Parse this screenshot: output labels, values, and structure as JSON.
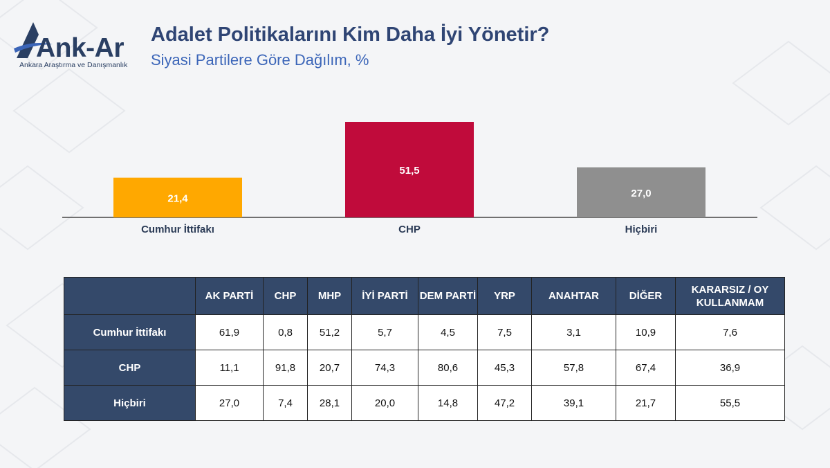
{
  "logo": {
    "text": "Ank-Ar",
    "subtitle": "Ankara Araştırma ve Danışmanlık"
  },
  "header": {
    "title": "Adalet Politikalarını Kim Daha İyi Yönetir?",
    "subtitle": "Siyasi Partilere Göre Dağılım, %"
  },
  "chart_data": {
    "type": "bar",
    "categories": [
      "Cumhur İttifakı",
      "CHP",
      "Hiçbiri"
    ],
    "values": [
      21.4,
      51.5,
      27.0
    ],
    "value_labels": [
      "21,4",
      "51,5",
      "27,0"
    ],
    "colors": [
      "#ffa800",
      "#c00b3b",
      "#8f8f8f"
    ],
    "ylim": [
      0,
      51.5
    ],
    "grid": false,
    "legend": "none"
  },
  "table": {
    "corner": "",
    "columns": [
      "AK PARTİ",
      "CHP",
      "MHP",
      "İYİ PARTİ",
      "DEM PARTİ",
      "YRP",
      "ANAHTAR",
      "DİĞER",
      "KARARSIZ / OY KULLANMAM"
    ],
    "rows": [
      {
        "label": "Cumhur İttifakı",
        "values": [
          "61,9",
          "0,8",
          "51,2",
          "5,7",
          "4,5",
          "7,5",
          "3,1",
          "10,9",
          "7,6"
        ]
      },
      {
        "label": "CHP",
        "values": [
          "11,1",
          "91,8",
          "20,7",
          "74,3",
          "80,6",
          "45,3",
          "57,8",
          "67,4",
          "36,9"
        ]
      },
      {
        "label": "Hiçbiri",
        "values": [
          "27,0",
          "7,4",
          "28,1",
          "20,0",
          "14,8",
          "47,2",
          "39,1",
          "21,7",
          "55,5"
        ]
      }
    ]
  },
  "colors": {
    "header_bg": "#34496a",
    "title": "#2f4574",
    "subtitle": "#3b65b8"
  }
}
